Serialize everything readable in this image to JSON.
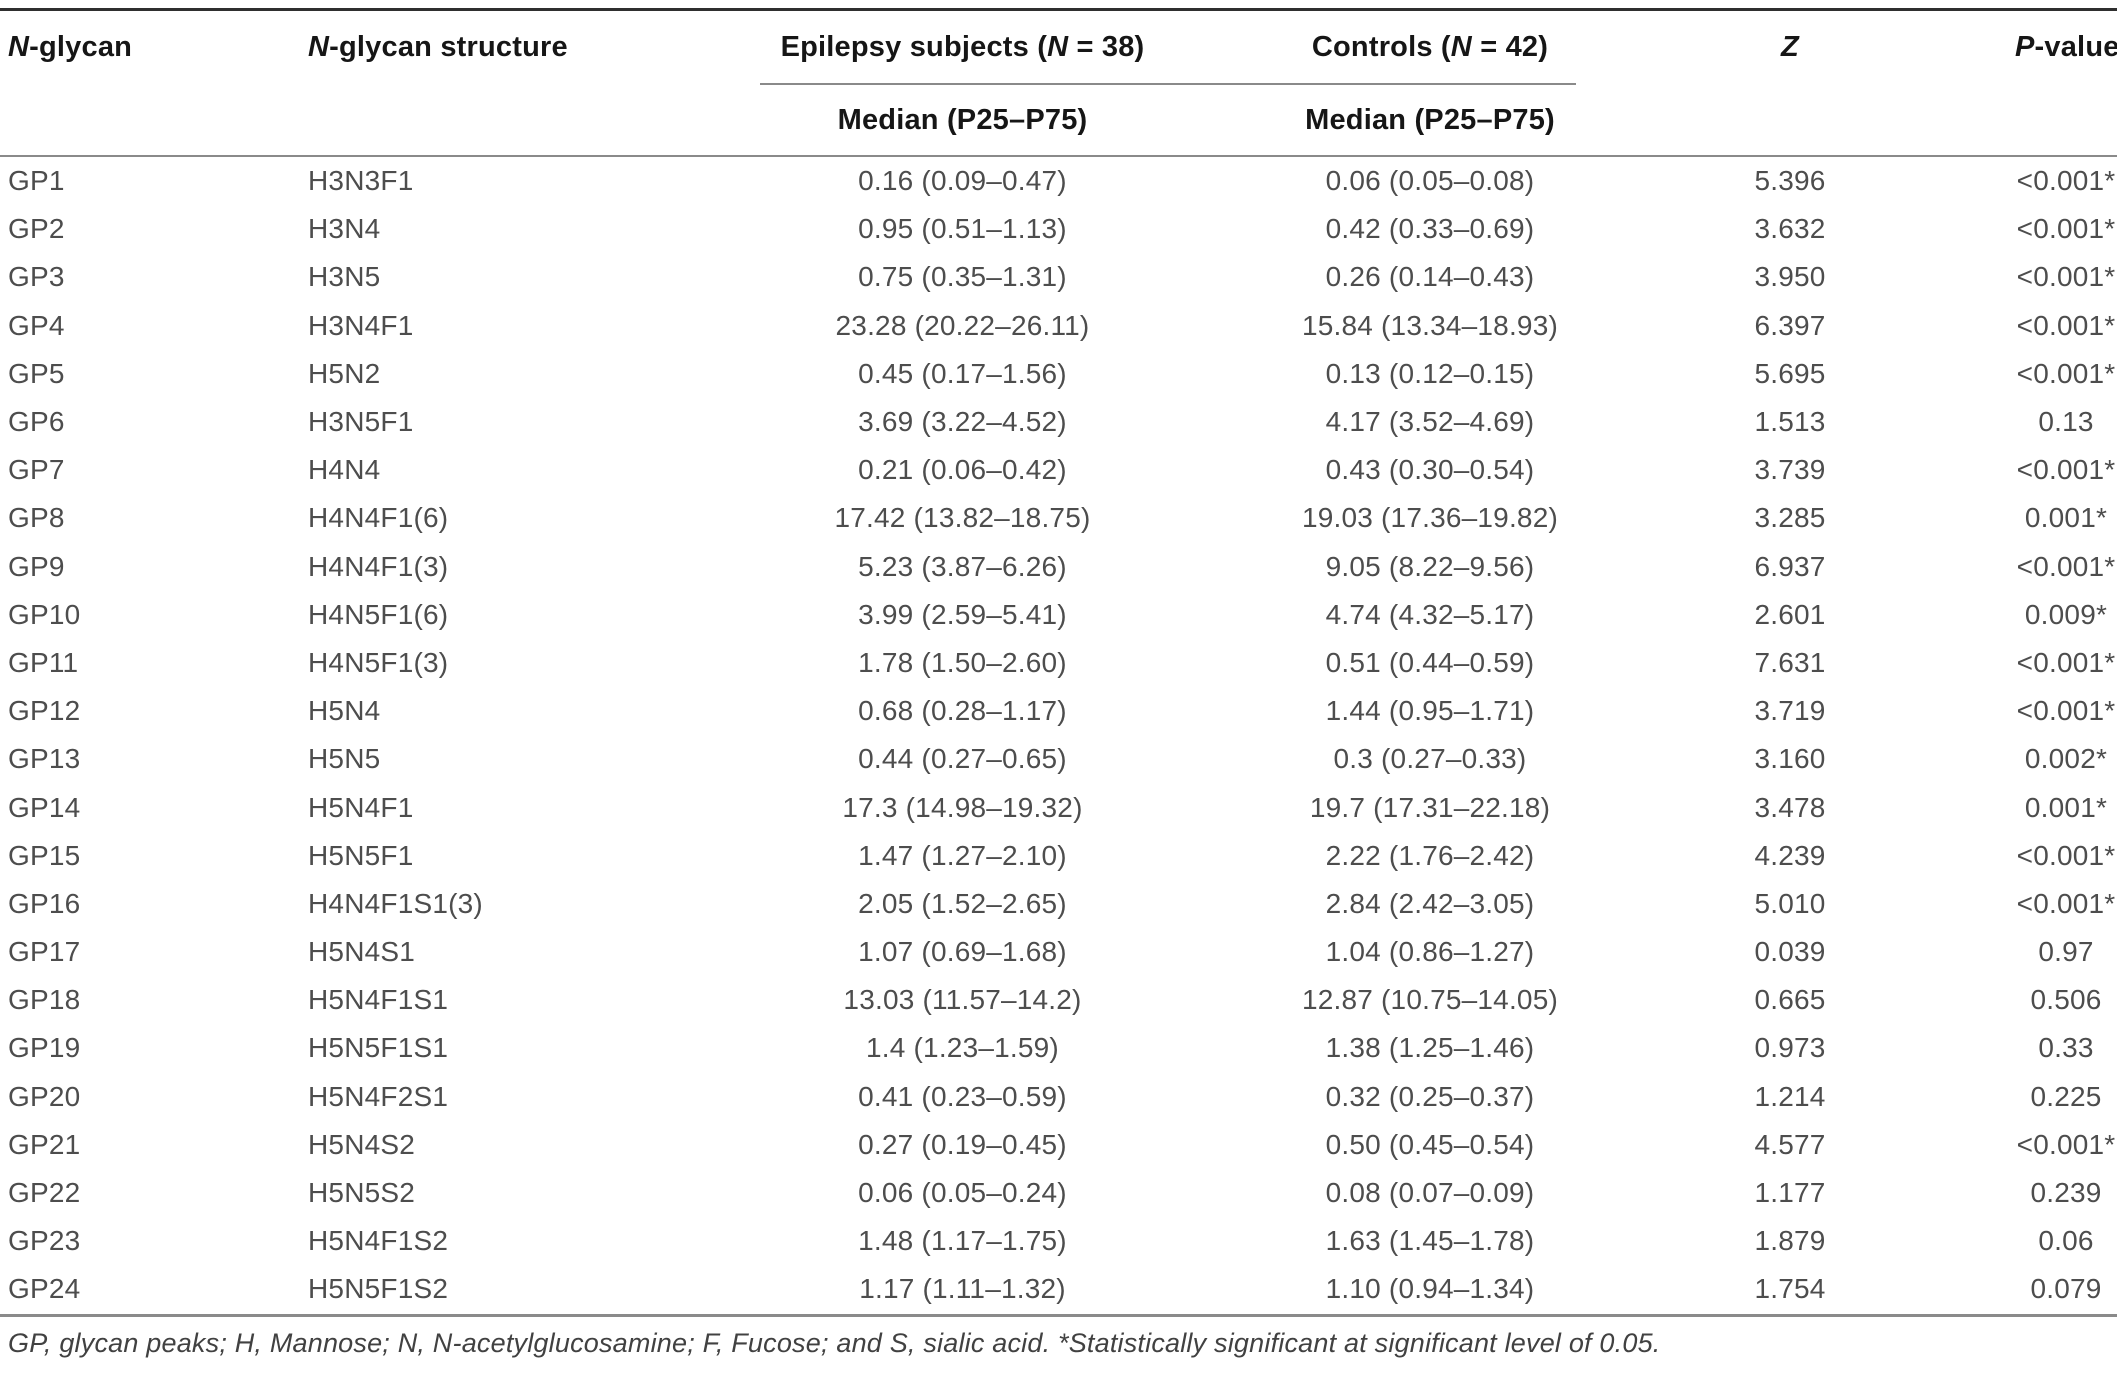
{
  "table": {
    "header": {
      "glycan": [
        {
          "t": "N",
          "i": true
        },
        {
          "t": "-glycan",
          "i": false
        }
      ],
      "structure": [
        {
          "t": "N",
          "i": true
        },
        {
          "t": "-glycan structure",
          "i": false
        }
      ],
      "epilepsy": [
        {
          "t": "Epilepsy subjects (",
          "i": false
        },
        {
          "t": "N",
          "i": true
        },
        {
          "t": " = 38)",
          "i": false
        }
      ],
      "controls": [
        {
          "t": "Controls (",
          "i": false
        },
        {
          "t": "N",
          "i": true
        },
        {
          "t": " = 42)",
          "i": false
        }
      ],
      "z": [
        {
          "t": "Z",
          "i": true
        }
      ],
      "p": [
        {
          "t": "P",
          "i": true
        },
        {
          "t": "-value",
          "i": false
        }
      ],
      "epilepsy_sub": "Median (P25–P75)",
      "controls_sub": "Median (P25–P75)"
    },
    "rows": [
      {
        "gp": "GP1",
        "structure": "H3N3F1",
        "epilepsy": "0.16 (0.09–0.47)",
        "controls": "0.06 (0.05–0.08)",
        "z": "5.396",
        "p": "<0.001*"
      },
      {
        "gp": "GP2",
        "structure": "H3N4",
        "epilepsy": "0.95 (0.51–1.13)",
        "controls": "0.42 (0.33–0.69)",
        "z": "3.632",
        "p": "<0.001*"
      },
      {
        "gp": "GP3",
        "structure": "H3N5",
        "epilepsy": "0.75 (0.35–1.31)",
        "controls": "0.26 (0.14–0.43)",
        "z": "3.950",
        "p": "<0.001*"
      },
      {
        "gp": "GP4",
        "structure": "H3N4F1",
        "epilepsy": "23.28 (20.22–26.11)",
        "controls": "15.84 (13.34–18.93)",
        "z": "6.397",
        "p": "<0.001*"
      },
      {
        "gp": "GP5",
        "structure": "H5N2",
        "epilepsy": "0.45 (0.17–1.56)",
        "controls": "0.13 (0.12–0.15)",
        "z": "5.695",
        "p": "<0.001*"
      },
      {
        "gp": "GP6",
        "structure": "H3N5F1",
        "epilepsy": "3.69 (3.22–4.52)",
        "controls": "4.17 (3.52–4.69)",
        "z": "1.513",
        "p": "0.13"
      },
      {
        "gp": "GP7",
        "structure": "H4N4",
        "epilepsy": "0.21 (0.06–0.42)",
        "controls": "0.43 (0.30–0.54)",
        "z": "3.739",
        "p": "<0.001*"
      },
      {
        "gp": "GP8",
        "structure": "H4N4F1(6)",
        "epilepsy": "17.42 (13.82–18.75)",
        "controls": "19.03 (17.36–19.82)",
        "z": "3.285",
        "p": "0.001*"
      },
      {
        "gp": "GP9",
        "structure": "H4N4F1(3)",
        "epilepsy": "5.23 (3.87–6.26)",
        "controls": "9.05 (8.22–9.56)",
        "z": "6.937",
        "p": "<0.001*"
      },
      {
        "gp": "GP10",
        "structure": "H4N5F1(6)",
        "epilepsy": "3.99 (2.59–5.41)",
        "controls": "4.74 (4.32–5.17)",
        "z": "2.601",
        "p": "0.009*"
      },
      {
        "gp": "GP11",
        "structure": "H4N5F1(3)",
        "epilepsy": "1.78 (1.50–2.60)",
        "controls": "0.51 (0.44–0.59)",
        "z": "7.631",
        "p": "<0.001*"
      },
      {
        "gp": "GP12",
        "structure": "H5N4",
        "epilepsy": "0.68 (0.28–1.17)",
        "controls": "1.44 (0.95–1.71)",
        "z": "3.719",
        "p": "<0.001*"
      },
      {
        "gp": "GP13",
        "structure": "H5N5",
        "epilepsy": "0.44 (0.27–0.65)",
        "controls": "0.3 (0.27–0.33)",
        "z": "3.160",
        "p": "0.002*"
      },
      {
        "gp": "GP14",
        "structure": "H5N4F1",
        "epilepsy": "17.3 (14.98–19.32)",
        "controls": "19.7 (17.31–22.18)",
        "z": "3.478",
        "p": "0.001*"
      },
      {
        "gp": "GP15",
        "structure": "H5N5F1",
        "epilepsy": "1.47 (1.27–2.10)",
        "controls": "2.22 (1.76–2.42)",
        "z": "4.239",
        "p": "<0.001*"
      },
      {
        "gp": "GP16",
        "structure": "H4N4F1S1(3)",
        "epilepsy": "2.05 (1.52–2.65)",
        "controls": "2.84 (2.42–3.05)",
        "z": "5.010",
        "p": "<0.001*"
      },
      {
        "gp": "GP17",
        "structure": "H5N4S1",
        "epilepsy": "1.07 (0.69–1.68)",
        "controls": "1.04 (0.86–1.27)",
        "z": "0.039",
        "p": "0.97"
      },
      {
        "gp": "GP18",
        "structure": "H5N4F1S1",
        "epilepsy": "13.03 (11.57–14.2)",
        "controls": "12.87 (10.75–14.05)",
        "z": "0.665",
        "p": "0.506"
      },
      {
        "gp": "GP19",
        "structure": "H5N5F1S1",
        "epilepsy": "1.4 (1.23–1.59)",
        "controls": "1.38 (1.25–1.46)",
        "z": "0.973",
        "p": "0.33"
      },
      {
        "gp": "GP20",
        "structure": "H5N4F2S1",
        "epilepsy": "0.41 (0.23–0.59)",
        "controls": "0.32 (0.25–0.37)",
        "z": "1.214",
        "p": "0.225"
      },
      {
        "gp": "GP21",
        "structure": "H5N4S2",
        "epilepsy": "0.27 (0.19–0.45)",
        "controls": "0.50 (0.45–0.54)",
        "z": "4.577",
        "p": "<0.001*"
      },
      {
        "gp": "GP22",
        "structure": "H5N5S2",
        "epilepsy": "0.06 (0.05–0.24)",
        "controls": "0.08 (0.07–0.09)",
        "z": "1.177",
        "p": "0.239"
      },
      {
        "gp": "GP23",
        "structure": "H5N4F1S2",
        "epilepsy": "1.48 (1.17–1.75)",
        "controls": "1.63 (1.45–1.78)",
        "z": "1.879",
        "p": "0.06"
      },
      {
        "gp": "GP24",
        "structure": "H5N5F1S2",
        "epilepsy": "1.17 (1.11–1.32)",
        "controls": "1.10 (0.94–1.34)",
        "z": "1.754",
        "p": "0.079"
      }
    ],
    "footnote": "GP, glycan peaks; H, Mannose; N, N-acetylglucosamine; F, Fucose; and S, sialic acid. *Statistically significant at significant level of 0.05.",
    "colors": {
      "header_text": "#161616",
      "body_text": "#4d4d4d",
      "rule_dark": "#2f2f2f",
      "rule_light": "#8a8a8a",
      "background": "#ffffff"
    }
  }
}
